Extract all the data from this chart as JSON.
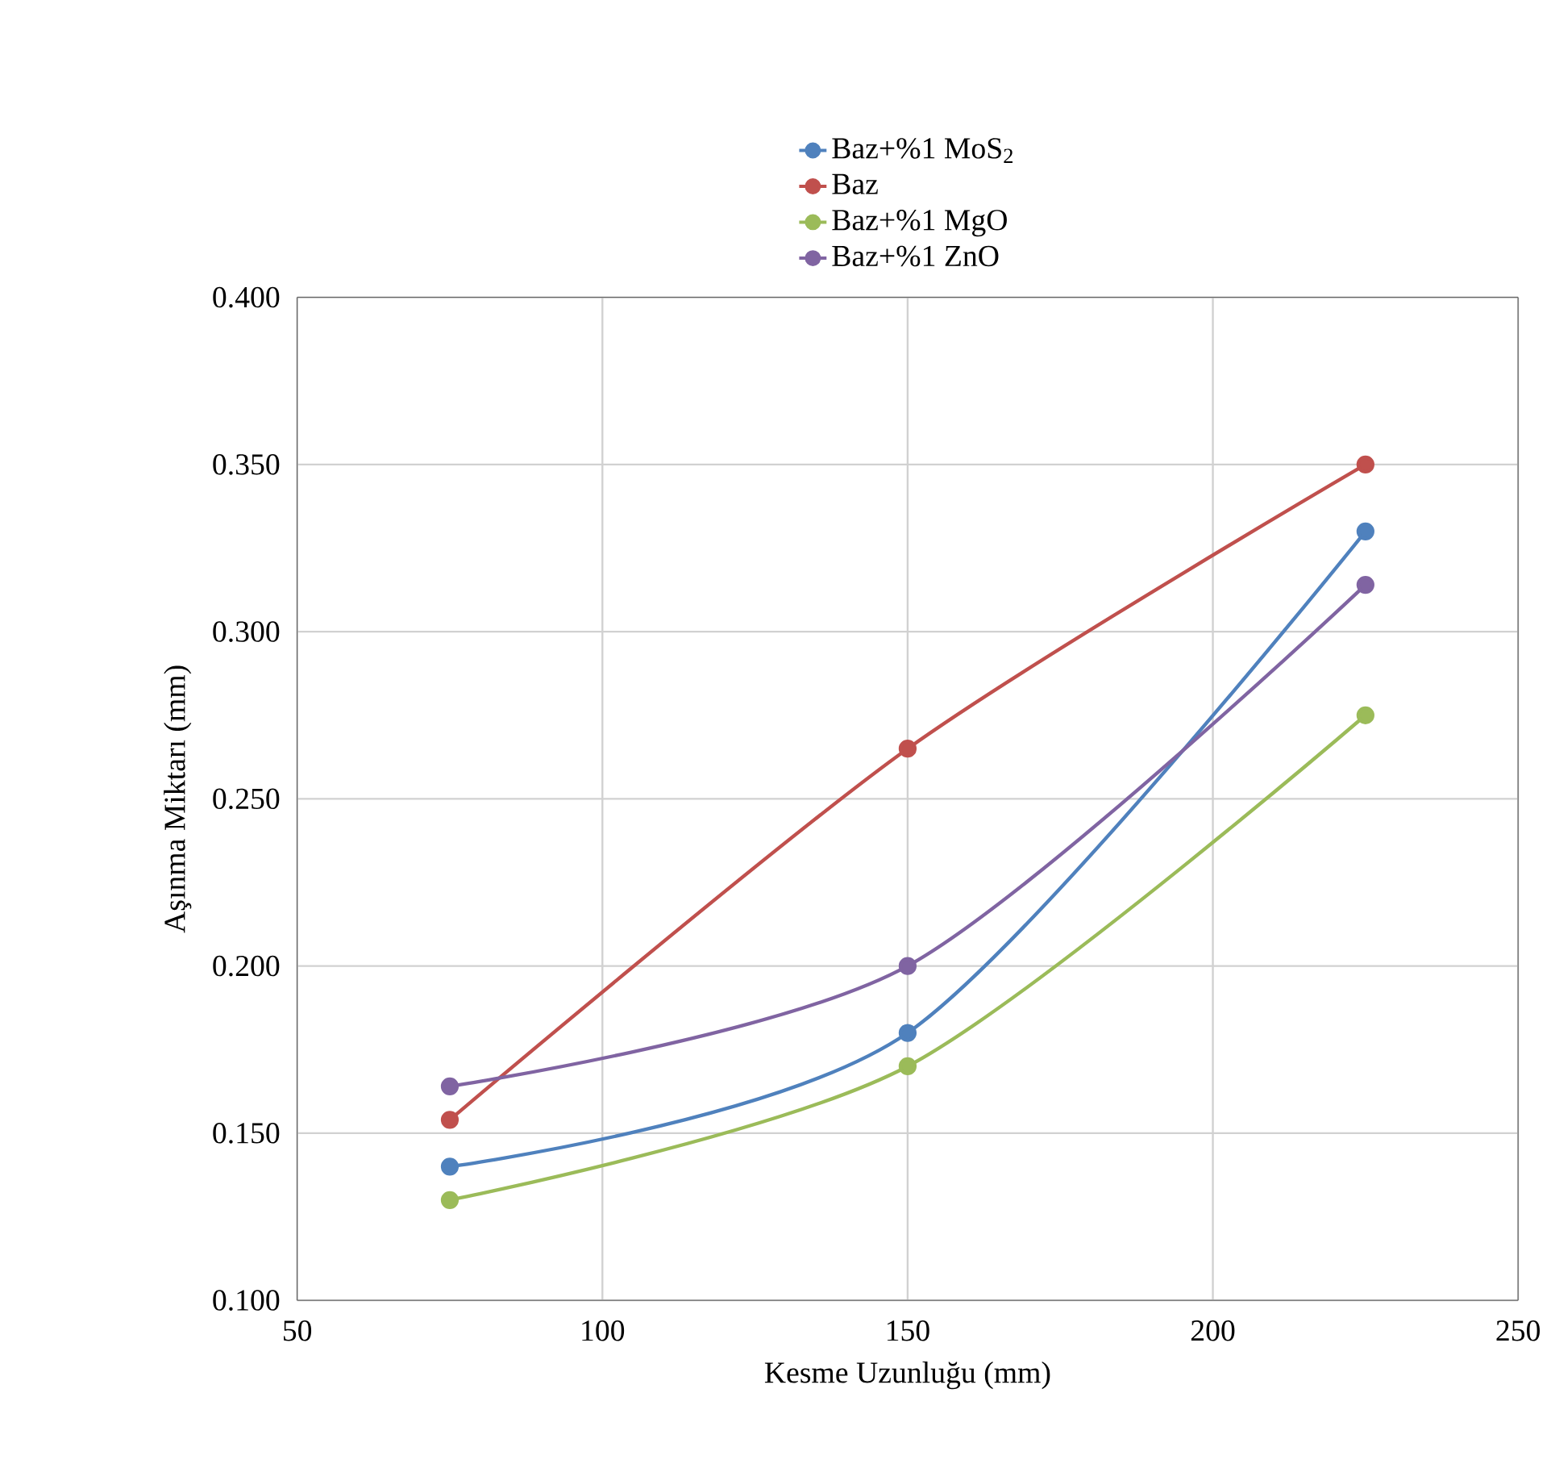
{
  "chart_data": {
    "type": "line",
    "xlabel": "Kesme Uzunluğu (mm)",
    "ylabel": "Aşınma Miktarı (mm)",
    "x": [
      75,
      150,
      225
    ],
    "series": [
      {
        "name": "Baz+%1 MoS$_{2}$",
        "color": "#4f81bd",
        "values": [
          0.14,
          0.18,
          0.33
        ]
      },
      {
        "name": "Baz",
        "color": "#c0504d",
        "values": [
          0.154,
          0.265,
          0.35
        ]
      },
      {
        "name": "Baz+%1 MgO",
        "color": "#9bbb59",
        "values": [
          0.13,
          0.17,
          0.275
        ]
      },
      {
        "name": "Baz+%1 ZnO",
        "color": "#8064a2",
        "values": [
          0.164,
          0.2,
          0.314
        ]
      }
    ],
    "xlim": [
      50,
      250
    ],
    "xticks": [
      50,
      100,
      150,
      200,
      250
    ],
    "ylim": [
      0.1,
      0.4
    ],
    "yticks": [
      {
        "value": 0.1,
        "label": "0.100"
      },
      {
        "value": 0.15,
        "label": "0.150"
      },
      {
        "value": 0.2,
        "label": "0.200"
      },
      {
        "value": 0.25,
        "label": "0.250"
      },
      {
        "value": 0.3,
        "label": "0.300"
      },
      {
        "value": 0.35,
        "label": "0.350"
      },
      {
        "value": 0.4,
        "label": "0.400"
      }
    ],
    "grid": true,
    "legend": "top",
    "marker": "circle",
    "line_style": "solid"
  }
}
